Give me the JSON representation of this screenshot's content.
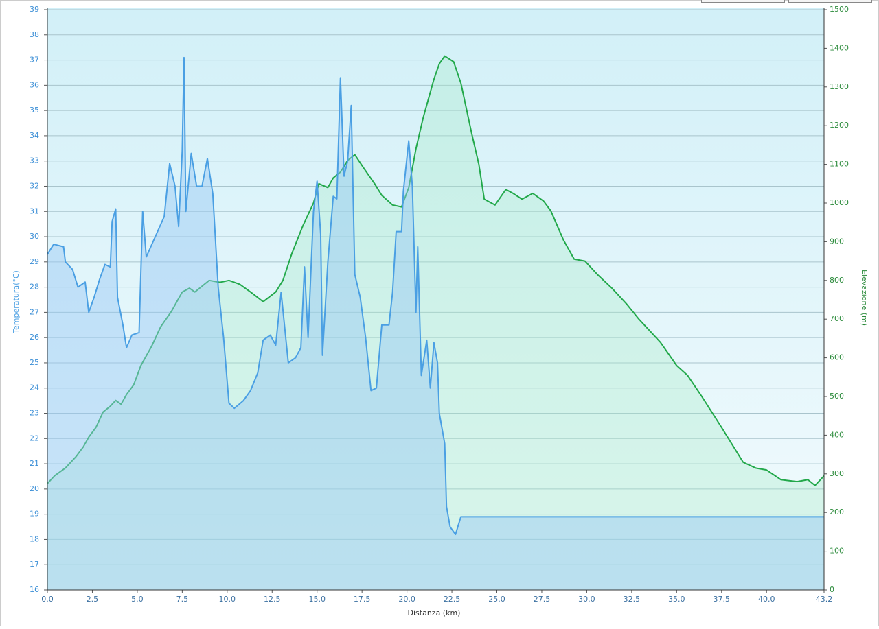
{
  "chart_data": {
    "type": "area",
    "x_label": "Distanza  (km)",
    "y_label": "Temperatura(°C)",
    "y2_label": "Elevazione (m)",
    "xlim": [
      0,
      43.2
    ],
    "xticks": [
      {
        "value": 0,
        "label": "0.0"
      },
      2.5,
      {
        "value": 5,
        "label": "5.0"
      },
      7.5,
      {
        "value": 10,
        "label": "10.0"
      },
      12.5,
      {
        "value": 15,
        "label": "15.0"
      },
      17.5,
      {
        "value": 20,
        "label": "20.0"
      },
      22.5,
      {
        "value": 25,
        "label": "25.0"
      },
      27.5,
      {
        "value": 30,
        "label": "30.0"
      },
      32.5,
      {
        "value": 35,
        "label": "35.0"
      },
      37.5,
      {
        "value": 40,
        "label": "40.0"
      },
      43.2
    ],
    "ylim": [
      16,
      39
    ],
    "yticks": [
      16,
      17,
      18,
      19,
      20,
      21,
      22,
      23,
      24,
      25,
      26,
      27,
      28,
      29,
      30,
      31,
      32,
      33,
      34,
      35,
      36,
      37,
      38,
      39
    ],
    "y2lim": [
      0,
      1500
    ],
    "y2ticks": [
      0,
      100,
      200,
      300,
      400,
      500,
      600,
      700,
      800,
      900,
      1000,
      1100,
      1200,
      1300,
      1400,
      1500
    ],
    "grid": true,
    "series": [
      {
        "color": "#4a9fe3",
        "axis": "y",
        "x": [
          0,
          0.35,
          0.9,
          1.0,
          1.4,
          1.7,
          2.1,
          2.3,
          2.6,
          2.9,
          3.2,
          3.5,
          3.6,
          3.8,
          3.9,
          4.2,
          4.4,
          4.7,
          5.1,
          5.3,
          5.5,
          6.5,
          6.8,
          7.1,
          7.3,
          7.5,
          7.6,
          7.7,
          8.0,
          8.3,
          8.6,
          8.9,
          9.2,
          9.5,
          9.8,
          10.1,
          10.4,
          10.9,
          11.3,
          11.7,
          12.0,
          12.4,
          12.7,
          13.0,
          13.4,
          13.8,
          14.1,
          14.3,
          14.5,
          14.8,
          15.0,
          15.2,
          15.3,
          15.6,
          15.9,
          16.1,
          16.3,
          16.5,
          16.7,
          16.9,
          17.1,
          17.4,
          17.7,
          18.0,
          18.3,
          18.6,
          19.0,
          19.2,
          19.4,
          19.7,
          19.8,
          20.1,
          20.3,
          20.5,
          20.6,
          20.8,
          21.1,
          21.3,
          21.5,
          21.7,
          21.8,
          22.1,
          22.2,
          22.4,
          22.7,
          23.0,
          43.2
        ],
        "values": [
          29.3,
          29.7,
          29.6,
          29.0,
          28.7,
          28.0,
          28.2,
          27.0,
          27.6,
          28.3,
          28.9,
          28.8,
          30.6,
          31.1,
          27.6,
          26.5,
          25.6,
          26.1,
          26.2,
          31.0,
          29.2,
          30.8,
          32.9,
          32.0,
          30.4,
          33.4,
          37.1,
          31.0,
          33.3,
          32.0,
          32.0,
          33.1,
          31.7,
          28.0,
          26.0,
          23.4,
          23.2,
          23.5,
          23.9,
          24.6,
          25.9,
          26.1,
          25.7,
          27.8,
          25.0,
          25.2,
          25.6,
          28.8,
          26.0,
          31.0,
          32.2,
          30.1,
          25.3,
          29.0,
          31.6,
          31.5,
          36.3,
          32.4,
          33.0,
          35.2,
          28.5,
          27.6,
          26.0,
          23.9,
          24.0,
          26.5,
          26.5,
          27.8,
          30.2,
          30.2,
          31.8,
          33.8,
          32.0,
          27.0,
          29.6,
          24.5,
          25.9,
          24.0,
          25.8,
          25.0,
          23.0,
          21.8,
          19.3,
          18.5,
          18.2,
          18.9,
          18.9
        ]
      },
      {
        "color": "#22a84a",
        "axis": "y2",
        "x": [
          0,
          0.4,
          1.0,
          1.6,
          2.0,
          2.3,
          2.7,
          3.1,
          3.5,
          3.8,
          4.1,
          4.4,
          4.8,
          5.2,
          5.8,
          6.3,
          6.9,
          7.5,
          7.9,
          8.2,
          8.6,
          9.0,
          9.6,
          10.1,
          10.7,
          11.3,
          12.0,
          12.7,
          13.1,
          13.6,
          14.2,
          14.8,
          15.1,
          15.6,
          15.9,
          16.3,
          16.7,
          17.1,
          17.6,
          18.2,
          18.6,
          19.2,
          19.7,
          20.1,
          20.5,
          20.9,
          21.5,
          21.8,
          22.1,
          22.6,
          23.0,
          23.6,
          24.0,
          24.3,
          24.9,
          25.5,
          25.9,
          26.4,
          27.0,
          27.6,
          28.0,
          28.7,
          29.3,
          29.9,
          30.6,
          31.4,
          32.2,
          32.9,
          34.1,
          35.0,
          35.6,
          36.4,
          37.5,
          38.7,
          39.4,
          40.0,
          40.8,
          41.7,
          42.3,
          42.7,
          43.2
        ],
        "values": [
          275,
          295,
          315,
          345,
          370,
          395,
          420,
          460,
          475,
          490,
          480,
          505,
          530,
          580,
          630,
          680,
          720,
          770,
          780,
          770,
          785,
          800,
          795,
          800,
          790,
          770,
          745,
          770,
          800,
          870,
          940,
          1000,
          1050,
          1040,
          1065,
          1080,
          1110,
          1125,
          1090,
          1050,
          1020,
          995,
          990,
          1040,
          1140,
          1220,
          1320,
          1360,
          1380,
          1365,
          1310,
          1180,
          1100,
          1010,
          995,
          1035,
          1025,
          1010,
          1025,
          1005,
          980,
          905,
          855,
          850,
          815,
          780,
          740,
          700,
          640,
          580,
          555,
          500,
          420,
          330,
          315,
          310,
          285,
          280,
          285,
          270,
          295
        ]
      }
    ]
  }
}
